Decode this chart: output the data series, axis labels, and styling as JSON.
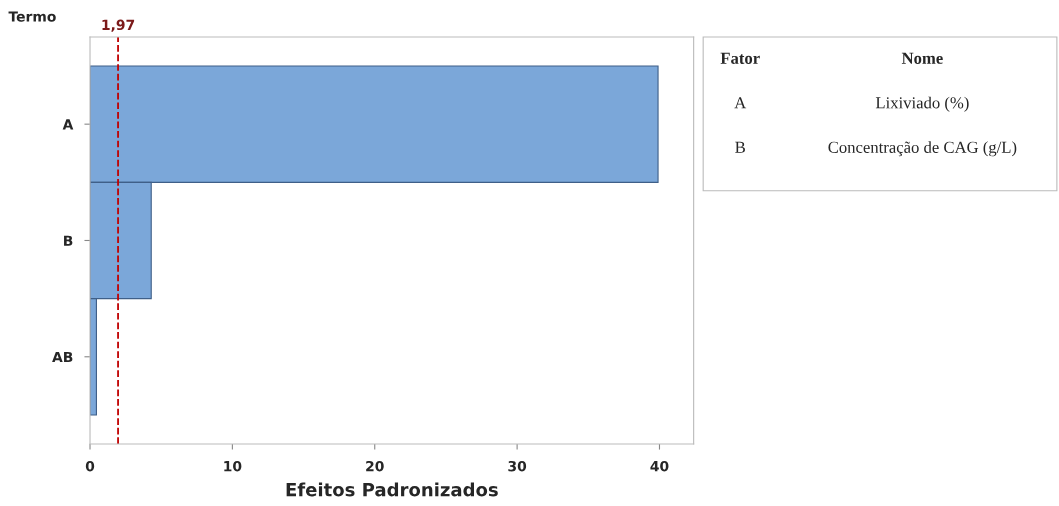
{
  "chart_data": {
    "type": "bar",
    "orientation": "horizontal",
    "categories": [
      "A",
      "B",
      "AB"
    ],
    "values": [
      39.9,
      4.3,
      0.45
    ],
    "color": "#7ba7d9",
    "xlabel": "Efeitos Padronizados",
    "ylabel": "Termo",
    "xlim": [
      0,
      42.4
    ],
    "xticks": [
      0,
      10,
      20,
      30,
      40
    ],
    "ref_lines": [
      {
        "axis": "x",
        "value": 1.97,
        "label": "1,97",
        "color": "#c00000",
        "line_style": "dashed"
      }
    ],
    "annotations": [
      "Fator",
      "Nome",
      "A",
      "Lixiviado (%)",
      "B",
      "Concentração de CAG (g/L)"
    ],
    "grid": false,
    "legend": false
  }
}
